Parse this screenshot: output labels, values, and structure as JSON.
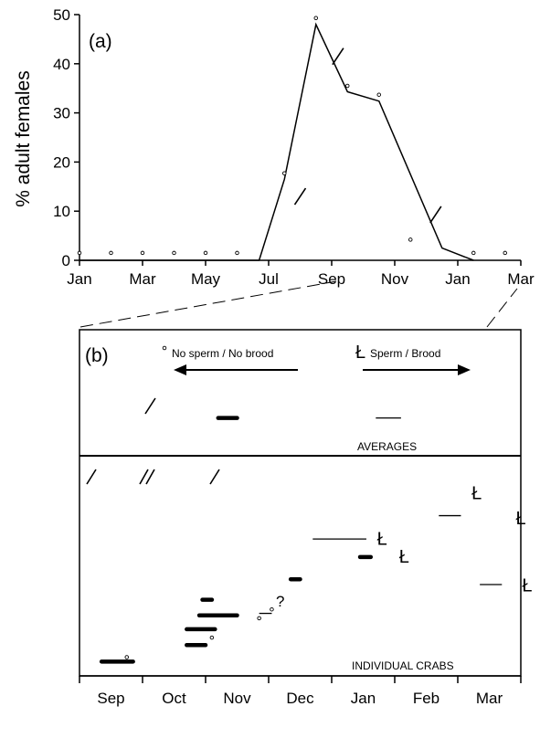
{
  "chart_data": [
    {
      "panel_label": "(a)",
      "type": "line",
      "ylabel": "% adult females",
      "xlabel": "",
      "ylim": [
        0,
        50
      ],
      "y_ticks": [
        "0",
        "10",
        "20",
        "30",
        "40",
        "50"
      ],
      "x_ticks": [
        "Jan",
        "Mar",
        "May",
        "Jul",
        "Sep",
        "Nov",
        "Jan",
        "Mar"
      ],
      "series": [
        {
          "x": [
            0,
            1,
            2,
            3,
            4,
            5,
            5.7,
            6.5,
            7.5,
            8.5,
            9.5,
            11.5,
            12.5
          ],
          "values": [
            0,
            0,
            0,
            0,
            0,
            0,
            0,
            16.5,
            48,
            34.3,
            32.4,
            2.5,
            0
          ]
        }
      ],
      "open_points": [
        {
          "x": 0,
          "y": 1.5
        },
        {
          "x": 1,
          "y": 1.5
        },
        {
          "x": 2,
          "y": 1.5
        },
        {
          "x": 3,
          "y": 1.5
        },
        {
          "x": 4,
          "y": 1.5
        },
        {
          "x": 5,
          "y": 1.5
        },
        {
          "x": 6.5,
          "y": 17.7
        },
        {
          "x": 7.5,
          "y": 49.3
        },
        {
          "x": 8.5,
          "y": 35.5
        },
        {
          "x": 9.5,
          "y": 33.7
        },
        {
          "x": 10.5,
          "y": 4.2
        },
        {
          "x": 12.5,
          "y": 1.5
        },
        {
          "x": 13.5,
          "y": 1.5
        }
      ],
      "slash_marks": [
        {
          "x": 7,
          "y": 13
        },
        {
          "x": 8.2,
          "y": 41.5
        },
        {
          "x": 11.3,
          "y": 9.3
        }
      ]
    },
    {
      "panel_label": "(b)",
      "type": "timeline",
      "x_ticks": [
        "Sep",
        "Oct",
        "Nov",
        "Dec",
        "Jan",
        "Feb",
        "Mar"
      ],
      "legend": {
        "no_sperm": "No sperm / No brood",
        "sperm": "Sperm / Brood",
        "sperm_symbol": "Ł"
      },
      "averages_label": "AVERAGES",
      "individual_label": "INDIVIDUAL CRABS",
      "question_mark": "?",
      "symbol": "Ł",
      "averages_segments": [
        {
          "x0": 2.2,
          "x1": 2.5,
          "row": 0.7,
          "thick": true
        },
        {
          "x0": 4.7,
          "x1": 5.1,
          "row": 0.7,
          "thick": false
        }
      ],
      "individual_segments": [
        {
          "x0": 0.35,
          "x1": 0.85,
          "row": 0.935,
          "thick": true
        },
        {
          "x0": 1.7,
          "x1": 2.0,
          "row": 0.86,
          "thick": true
        },
        {
          "x0": 1.7,
          "x1": 2.15,
          "row": 0.788,
          "thick": true
        },
        {
          "x0": 1.9,
          "x1": 2.5,
          "row": 0.725,
          "thick": true
        },
        {
          "x0": 1.95,
          "x1": 2.1,
          "row": 0.654,
          "thick": true
        },
        {
          "x0": 2.85,
          "x1": 3.05,
          "row": 0.716,
          "thick": false
        },
        {
          "x0": 3.35,
          "x1": 3.5,
          "row": 0.561,
          "thick": true
        },
        {
          "x0": 3.7,
          "x1": 4.55,
          "row": 0.378,
          "thick": false
        },
        {
          "x0": 4.45,
          "x1": 4.62,
          "row": 0.46,
          "thick": true
        },
        {
          "x0": 5.7,
          "x1": 6.05,
          "row": 0.272,
          "thick": false
        },
        {
          "x0": 6.35,
          "x1": 6.7,
          "row": 0.585,
          "thick": false
        }
      ],
      "individual_symbols": [
        {
          "x": 4.8,
          "row": 0.372
        },
        {
          "x": 5.15,
          "row": 0.452
        },
        {
          "x": 6.3,
          "row": 0.164
        },
        {
          "x": 7.0,
          "row": 0.277
        },
        {
          "x": 7.1,
          "row": 0.582
        }
      ],
      "individual_open_points": [
        {
          "x": 0.75,
          "row": 0.915
        },
        {
          "x": 2.1,
          "row": 0.826
        },
        {
          "x": 2.85,
          "row": 0.738
        },
        {
          "x": 3.05,
          "row": 0.698
        }
      ]
    }
  ]
}
